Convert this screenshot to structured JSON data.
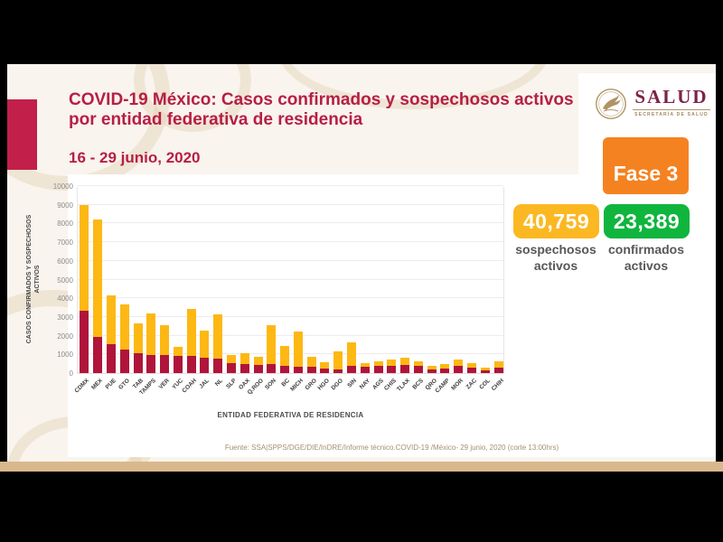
{
  "header": {
    "title_line1": "COVID-19 México: Casos confirmados y sospechosos activos",
    "title_line2": "por entidad federativa de residencia",
    "date_range": "16 - 29 junio, 2020"
  },
  "logo": {
    "wordmark": "SALUD",
    "subtitle": "SECRETARÍA DE SALUD"
  },
  "phase_badge": {
    "label": "Fase 3",
    "color": "#f58220"
  },
  "stats": {
    "suspected": {
      "value": "40,759",
      "label": "sospechosos activos",
      "color": "#fcb823"
    },
    "confirmed": {
      "value": "23,389",
      "label": "confirmados activos",
      "color": "#10b53e"
    }
  },
  "footer": {
    "source": "Fuente: SSA|SPPS/DGE/DIE/InDRE/Informe técnico.COVID-19 /México- 29 junio, 2020 (corte 13:00hrs)"
  },
  "chart_data": {
    "type": "bar",
    "stacked": true,
    "xlabel": "ENTIDAD FEDERATIVA DE RESIDENCIA",
    "ylabel": "CASOS CONFIRMADOS Y SOSPECHOSOS ACTIVOS",
    "ylabel_line1": "CASOS CONFIRMADOS Y SOSPECHOSOS",
    "ylabel_line2": "ACTIVOS",
    "ylim": [
      0,
      10000
    ],
    "ytick_step": 1000,
    "grid": true,
    "legend": false,
    "categories": [
      "CDMX",
      "MEX",
      "PUE",
      "GTO",
      "TAB",
      "TAMPS",
      "VER",
      "YUC",
      "COAH",
      "JAL",
      "NL",
      "SLP",
      "OAX",
      "Q.ROO",
      "SON",
      "BC",
      "MICH",
      "GRO",
      "HGO",
      "DGO",
      "SIN",
      "NAY",
      "AGS",
      "CHIS",
      "TLAX",
      "BCS",
      "QRO",
      "CAMP",
      "MOR",
      "ZAC",
      "COL",
      "CHIH"
    ],
    "series": [
      {
        "name": "confirmados activos",
        "color": "#b0143a",
        "values": [
          3350,
          1950,
          1550,
          1250,
          1060,
          980,
          960,
          900,
          900,
          830,
          770,
          510,
          480,
          430,
          480,
          370,
          350,
          320,
          240,
          210,
          400,
          330,
          370,
          400,
          440,
          410,
          210,
          240,
          365,
          290,
          160,
          290
        ]
      },
      {
        "name": "sospechosos activos",
        "color": "#fdb813",
        "values": [
          5650,
          6280,
          2600,
          2400,
          1600,
          2220,
          1620,
          520,
          2530,
          1440,
          2370,
          450,
          560,
          450,
          2070,
          1060,
          1880,
          560,
          320,
          950,
          1230,
          200,
          270,
          320,
          360,
          230,
          160,
          240,
          350,
          265,
          150,
          360
        ]
      }
    ]
  }
}
